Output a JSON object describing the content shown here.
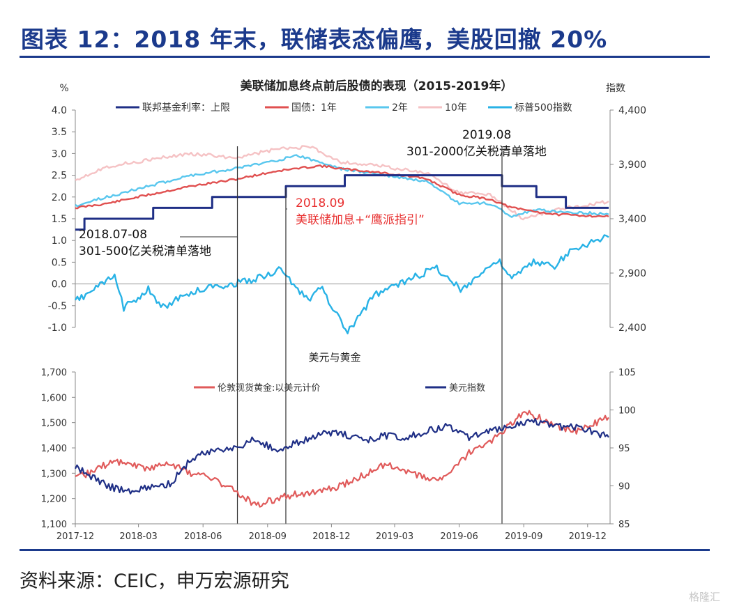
{
  "figure": {
    "title": "图表 12：2018 年末，联储表态偏鹰，美股回撤 20%",
    "source": "资料来源：CEIC，申万宏源研究",
    "watermark": "格隆汇"
  },
  "colors": {
    "fed": "#1f2f86",
    "t1y": "#e05050",
    "t2y": "#59c7ee",
    "t10y": "#f5c2c4",
    "spx": "#28b2e6",
    "gold": "#e05a5a",
    "dxy": "#1f2f86",
    "title_blue": "#1b3a8c",
    "annot_red": "#e83030"
  },
  "chart_data": [
    {
      "type": "line",
      "title": "美联储加息终点前后股债的表现（2015-2019年）",
      "ylabel": "%",
      "ylabel_right": "指数",
      "ylim": [
        -1.0,
        4.0
      ],
      "ylim_right": [
        2400,
        4400
      ],
      "yticks": [
        "4.0",
        "3.5",
        "3.0",
        "2.5",
        "2.0",
        "1.5",
        "1.0",
        "0.5",
        "0.0",
        "-0.5",
        "-1.0"
      ],
      "yticks_right": [
        "4,400",
        "3,900",
        "3,400",
        "2,900",
        "2,400"
      ],
      "x_range": [
        "2017-12",
        "2019-12"
      ],
      "legend_position": "top",
      "series": [
        {
          "name": "联邦基金利率：上限",
          "axis": "left",
          "step": true,
          "x": [
            "2017-12-01",
            "2017-12-14",
            "2018-03-22",
            "2018-06-14",
            "2018-09-27",
            "2018-12-20",
            "2019-08-01",
            "2019-09-19",
            "2019-10-31",
            "2019-12-31"
          ],
          "y": [
            1.25,
            1.5,
            1.75,
            2.0,
            2.25,
            2.5,
            2.25,
            2.0,
            1.75,
            1.75
          ]
        },
        {
          "name": "国债：1年",
          "axis": "left",
          "x": [
            "2017-12-01",
            "2018-01-15",
            "2018-03-15",
            "2018-05-15",
            "2018-07-15",
            "2018-09-15",
            "2018-11-15",
            "2018-12-15",
            "2019-02-15",
            "2019-04-15",
            "2019-06-01",
            "2019-07-15",
            "2019-08-15",
            "2019-10-15",
            "2019-12-31"
          ],
          "y": [
            1.75,
            1.85,
            2.05,
            2.25,
            2.4,
            2.6,
            2.72,
            2.65,
            2.55,
            2.42,
            2.05,
            1.95,
            1.75,
            1.6,
            1.55
          ]
        },
        {
          "name": "2年",
          "axis": "left",
          "x": [
            "2017-12-01",
            "2018-01-15",
            "2018-03-15",
            "2018-05-15",
            "2018-07-15",
            "2018-09-15",
            "2018-10-15",
            "2018-12-15",
            "2019-02-15",
            "2019-04-15",
            "2019-06-01",
            "2019-07-15",
            "2019-08-15",
            "2019-09-15",
            "2019-12-31"
          ],
          "y": [
            1.8,
            2.0,
            2.25,
            2.5,
            2.65,
            2.85,
            2.95,
            2.65,
            2.5,
            2.35,
            1.85,
            1.85,
            1.55,
            1.7,
            1.6
          ]
        },
        {
          "name": "10年",
          "axis": "left",
          "x": [
            "2017-12-01",
            "2018-01-15",
            "2018-03-15",
            "2018-05-15",
            "2018-07-15",
            "2018-09-15",
            "2018-11-01",
            "2018-12-15",
            "2019-02-15",
            "2019-04-15",
            "2019-06-01",
            "2019-07-15",
            "2019-08-31",
            "2019-10-15",
            "2019-12-31"
          ],
          "y": [
            2.4,
            2.7,
            2.85,
            3.0,
            2.9,
            3.1,
            3.15,
            2.8,
            2.7,
            2.55,
            2.1,
            2.05,
            1.5,
            1.7,
            1.9
          ]
        },
        {
          "name": "标普500指数",
          "axis": "right",
          "x": [
            "2017-12-01",
            "2018-01-26",
            "2018-02-08",
            "2018-03-15",
            "2018-04-02",
            "2018-05-15",
            "2018-06-15",
            "2018-07-15",
            "2018-08-15",
            "2018-09-20",
            "2018-10-29",
            "2018-11-15",
            "2018-12-24",
            "2019-01-31",
            "2019-02-28",
            "2019-04-30",
            "2019-06-03",
            "2019-07-26",
            "2019-08-15",
            "2019-09-15",
            "2019-10-15",
            "2019-11-15",
            "2019-12-31"
          ],
          "y": [
            2640,
            2870,
            2580,
            2750,
            2580,
            2720,
            2780,
            2800,
            2850,
            2930,
            2640,
            2780,
            2350,
            2700,
            2780,
            2950,
            2750,
            3020,
            2850,
            3000,
            2970,
            3140,
            3230
          ]
        }
      ],
      "annotations": [
        {
          "date": "2018-07-20",
          "label_lines": [
            "2018.07-08",
            "301-500亿关税清单落地"
          ]
        },
        {
          "date": "2018-09-27",
          "label_lines": [
            "2018.09",
            "美联储加息+“鹰派指引”"
          ],
          "color": "red"
        },
        {
          "date": "2019-08-01",
          "label_lines": [
            "2019.08",
            "301-2000亿关税清单落地"
          ]
        }
      ]
    },
    {
      "type": "line",
      "title": "美元与黄金",
      "ylim": [
        1100,
        1700
      ],
      "ylim_right": [
        85,
        105
      ],
      "yticks": [
        "1,700",
        "1,600",
        "1,500",
        "1,400",
        "1,300",
        "1,200",
        "1,100"
      ],
      "yticks_right": [
        "105",
        "100",
        "95",
        "90",
        "85"
      ],
      "xticks": [
        "2017-12",
        "2018-03",
        "2018-06",
        "2018-09",
        "2018-12",
        "2019-03",
        "2019-06",
        "2019-09",
        "2019-12"
      ],
      "legend_position": "top",
      "series": [
        {
          "name": "伦敦现货黄金:以美元计价",
          "axis": "left",
          "x": [
            "2017-12-01",
            "2018-01-25",
            "2018-03-15",
            "2018-04-15",
            "2018-05-15",
            "2018-06-15",
            "2018-07-15",
            "2018-08-16",
            "2018-09-15",
            "2018-10-15",
            "2018-11-15",
            "2018-12-15",
            "2019-01-15",
            "2019-02-20",
            "2019-03-15",
            "2019-04-22",
            "2019-05-15",
            "2019-06-15",
            "2019-07-15",
            "2019-09-04",
            "2019-10-15",
            "2019-11-15",
            "2019-12-31"
          ],
          "y": [
            1275,
            1350,
            1320,
            1340,
            1300,
            1280,
            1230,
            1175,
            1200,
            1220,
            1225,
            1250,
            1290,
            1340,
            1305,
            1275,
            1285,
            1380,
            1420,
            1545,
            1490,
            1465,
            1520
          ]
        },
        {
          "name": "美元指数",
          "axis": "right",
          "x": [
            "2017-12-01",
            "2018-01-15",
            "2018-02-15",
            "2018-03-15",
            "2018-04-15",
            "2018-05-15",
            "2018-06-15",
            "2018-07-15",
            "2018-08-15",
            "2018-09-15",
            "2018-10-15",
            "2018-11-15",
            "2018-12-15",
            "2019-01-15",
            "2019-02-15",
            "2019-03-15",
            "2019-04-15",
            "2019-05-15",
            "2019-06-15",
            "2019-07-15",
            "2019-08-15",
            "2019-09-15",
            "2019-10-15",
            "2019-11-15",
            "2019-12-31"
          ],
          "y": [
            92.5,
            90.0,
            89.2,
            89.8,
            90.3,
            93.5,
            94.8,
            94.9,
            96.2,
            94.6,
            95.8,
            96.8,
            96.9,
            96.0,
            96.6,
            96.3,
            97.2,
            97.8,
            96.4,
            97.3,
            98.0,
            98.6,
            97.8,
            97.8,
            96.4
          ]
        }
      ],
      "annotations": [
        {
          "date": "2018-07-20"
        },
        {
          "date": "2018-09-27"
        },
        {
          "date": "2019-08-01"
        }
      ]
    }
  ]
}
